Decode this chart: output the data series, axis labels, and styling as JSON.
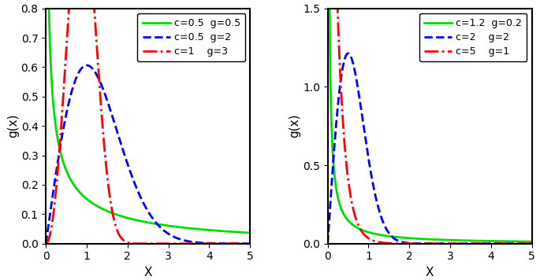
{
  "left_plot": {
    "curves": [
      {
        "c": 0.5,
        "g": 0.5,
        "color": "#00dd00",
        "linestyle": "solid",
        "label": "c=0.5  g=0.5"
      },
      {
        "c": 0.5,
        "g": 2.0,
        "color": "#0000ff",
        "linestyle": "dashed",
        "label": "c=0.5  g=2"
      },
      {
        "c": 1.0,
        "g": 3.0,
        "color": "#ff0000",
        "linestyle": "dashdot",
        "label": "c=1    g=3"
      }
    ],
    "xlim": [
      0,
      5
    ],
    "ylim": [
      0,
      0.8
    ],
    "xlabel": "X",
    "ylabel": "g(x)",
    "yticks": [
      0.0,
      0.1,
      0.2,
      0.3,
      0.4,
      0.5,
      0.6,
      0.7,
      0.8
    ]
  },
  "right_plot": {
    "curves": [
      {
        "c": 1.2,
        "g": 0.2,
        "color": "#00dd00",
        "linestyle": "solid",
        "label": "c=1.2  g=0.2"
      },
      {
        "c": 2.0,
        "g": 2.0,
        "color": "#0000ff",
        "linestyle": "dashed",
        "label": "c=2    g=2"
      },
      {
        "c": 5.0,
        "g": 1.0,
        "color": "#ff0000",
        "linestyle": "dashdot",
        "label": "c=5    g=1"
      }
    ],
    "xlim": [
      0,
      5
    ],
    "ylim": [
      0,
      1.5
    ],
    "xlabel": "X",
    "ylabel": "g(x)",
    "yticks": [
      0.0,
      0.5,
      1.0,
      1.5
    ]
  },
  "linewidth": 2.0,
  "legend_fontsize": 9,
  "axis_fontsize": 11,
  "tick_fontsize": 10,
  "background_color": "#ffffff"
}
